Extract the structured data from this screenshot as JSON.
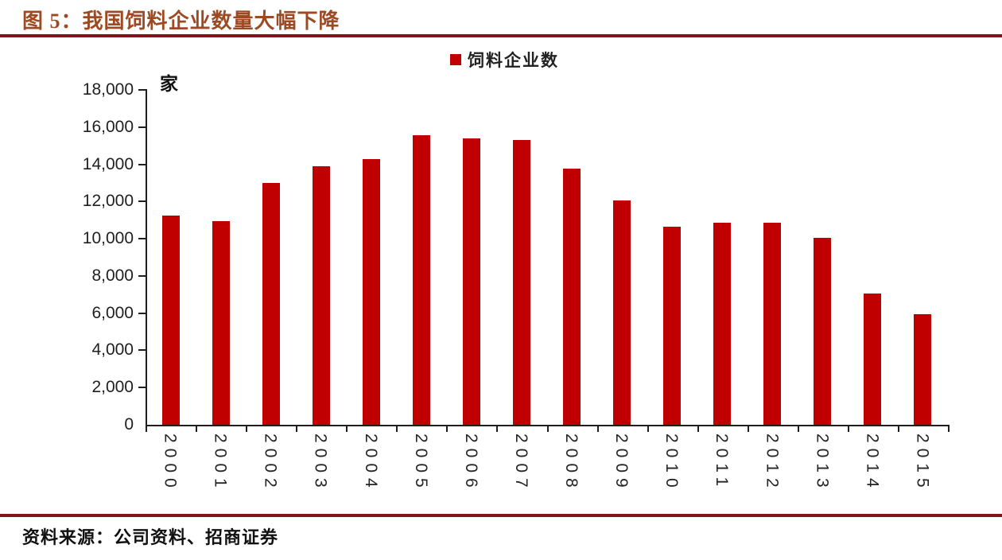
{
  "figure": {
    "title": "图 5：我国饲料企业数量大幅下降",
    "source": "资料来源：公司资料、招商证券"
  },
  "chart_data": {
    "type": "bar",
    "title": "图 5：我国饲料企业数量大幅下降",
    "unit_label": "家",
    "legend": [
      {
        "label": "饲料企业数",
        "color": "#C00000"
      }
    ],
    "legend_position": "top-center",
    "categories": [
      "2000",
      "2001",
      "2002",
      "2003",
      "2004",
      "2005",
      "2006",
      "2007",
      "2008",
      "2009",
      "2010",
      "2011",
      "2012",
      "2013",
      "2014",
      "2015"
    ],
    "series": [
      {
        "name": "饲料企业数",
        "values": [
          11250,
          10950,
          13000,
          13900,
          14300,
          15550,
          15400,
          15300,
          13750,
          12050,
          10650,
          10850,
          10850,
          10050,
          7050,
          5950
        ]
      }
    ],
    "ylim": [
      0,
      18000
    ],
    "ytick_step": 2000,
    "y_tick_labels": [
      "18,000",
      "16,000",
      "14,000",
      "12,000",
      "10,000",
      "8,000",
      "6,000",
      "4,000",
      "2,000",
      "0"
    ],
    "grid": false,
    "bar_color": "#C00000"
  },
  "colors": {
    "bar": "#C00000",
    "title_text": "#9D4A22",
    "rule": "#7E151A",
    "axis": "#1F1F1F"
  }
}
